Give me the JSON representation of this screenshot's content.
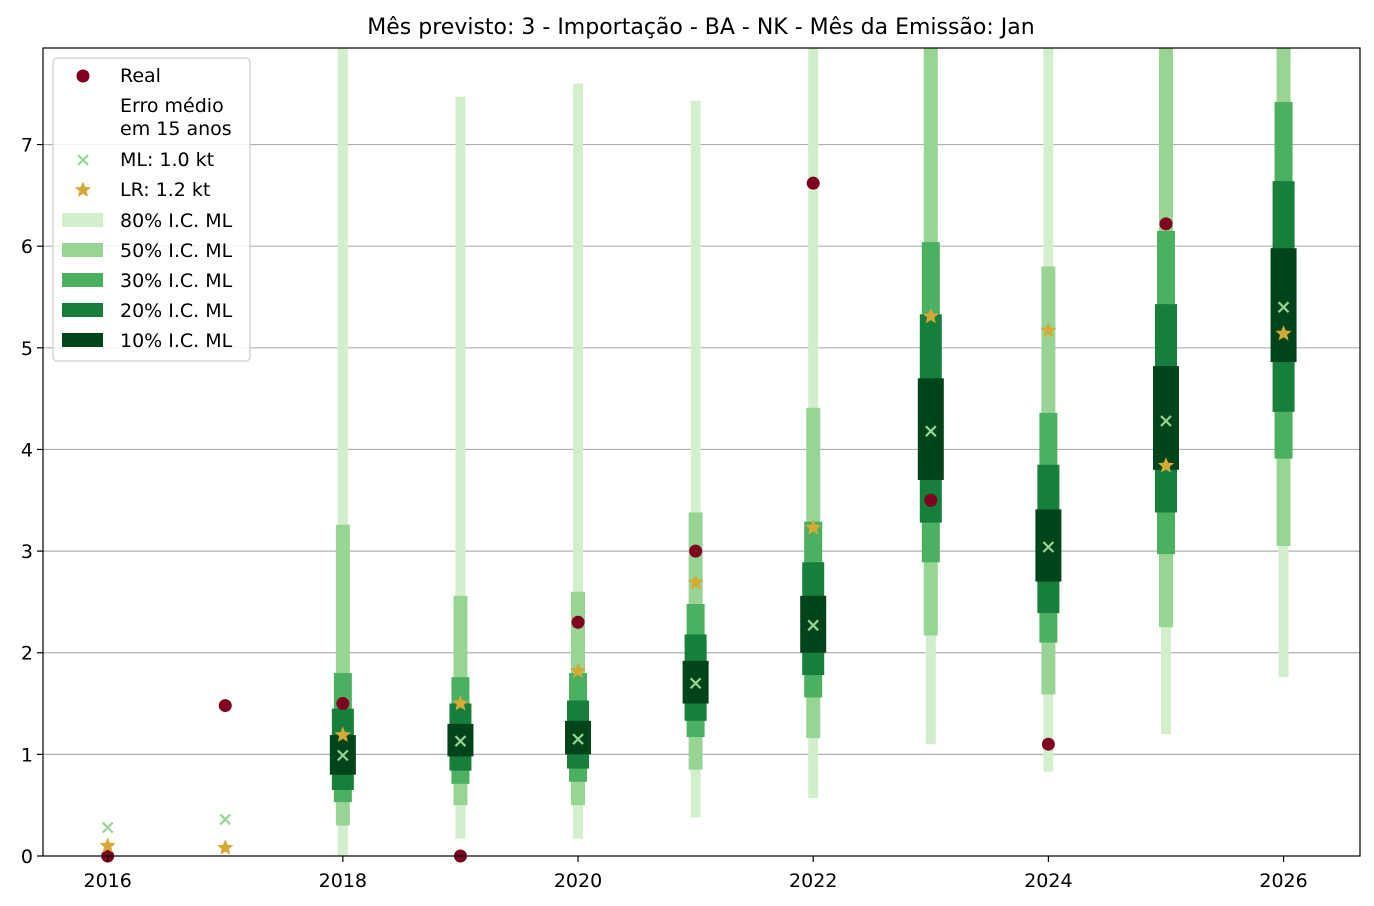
{
  "chart_data": {
    "type": "interval",
    "title": "Mês previsto: 3 - Importação - BA - NK - Mês da Emissão: Jan",
    "xlabel": "",
    "ylabel": "",
    "xlim": [
      2015.45,
      2026.65
    ],
    "ylim": [
      0,
      7.95
    ],
    "x_ticks": [
      2016,
      2018,
      2020,
      2022,
      2024,
      2026
    ],
    "y_ticks": [
      0,
      1,
      2,
      3,
      4,
      5,
      6,
      7
    ],
    "grid": "horizontal",
    "legend_position": "top-left",
    "legend": {
      "real": "Real",
      "erro": "Erro médio\nem 15 anos",
      "ml": "ML: 1.0 kt",
      "lr": "LR: 1.2 kt",
      "ci80": "80% I.C. ML",
      "ci50": "50% I.C. ML",
      "ci30": "30% I.C. ML",
      "ci20": "20% I.C. ML",
      "ci10": "10% I.C. ML"
    },
    "colors": {
      "real": "#7f0020",
      "ml": "#98d594",
      "lr": "#d4a935",
      "ci80": "#d3eecd",
      "ci50": "#98d594",
      "ci30": "#4bb062",
      "ci20": "#157f3b",
      "ci10": "#00441b"
    },
    "years": [
      2016,
      2017,
      2018,
      2019,
      2020,
      2021,
      2022,
      2023,
      2024,
      2025,
      2026
    ],
    "real": [
      0.0,
      1.48,
      1.5,
      0.0,
      2.3,
      3.0,
      6.62,
      3.5,
      1.1,
      6.22,
      null
    ],
    "ml": [
      0.28,
      0.36,
      0.99,
      1.13,
      1.15,
      1.7,
      2.27,
      4.18,
      3.04,
      4.28,
      5.4
    ],
    "lr": [
      0.1,
      0.08,
      1.19,
      1.5,
      1.82,
      2.69,
      3.23,
      5.31,
      5.17,
      3.84,
      5.14
    ],
    "intervals": [
      null,
      null,
      {
        "ci80": [
          0.0,
          7.95
        ],
        "ci50": [
          0.3,
          3.26
        ],
        "ci30": [
          0.53,
          1.8
        ],
        "ci20": [
          0.65,
          1.45
        ],
        "ci10": [
          0.8,
          1.19
        ]
      },
      {
        "ci80": [
          0.17,
          7.47
        ],
        "ci50": [
          0.5,
          2.56
        ],
        "ci30": [
          0.71,
          1.76
        ],
        "ci20": [
          0.84,
          1.5
        ],
        "ci10": [
          0.98,
          1.3
        ]
      },
      {
        "ci80": [
          0.17,
          7.6
        ],
        "ci50": [
          0.5,
          2.6
        ],
        "ci30": [
          0.73,
          1.8
        ],
        "ci20": [
          0.86,
          1.53
        ],
        "ci10": [
          1.0,
          1.33
        ]
      },
      {
        "ci80": [
          0.38,
          7.43
        ],
        "ci50": [
          0.85,
          3.38
        ],
        "ci30": [
          1.17,
          2.48
        ],
        "ci20": [
          1.33,
          2.18
        ],
        "ci10": [
          1.5,
          1.92
        ]
      },
      {
        "ci80": [
          0.57,
          7.95
        ],
        "ci50": [
          1.16,
          4.41
        ],
        "ci30": [
          1.56,
          3.29
        ],
        "ci20": [
          1.78,
          2.89
        ],
        "ci10": [
          2.0,
          2.56
        ]
      },
      {
        "ci80": [
          1.1,
          7.95
        ],
        "ci50": [
          2.17,
          7.95
        ],
        "ci30": [
          2.89,
          6.04
        ],
        "ci20": [
          3.28,
          5.33
        ],
        "ci10": [
          3.7,
          4.7
        ]
      },
      {
        "ci80": [
          0.83,
          7.95
        ],
        "ci50": [
          1.59,
          5.8
        ],
        "ci30": [
          2.1,
          4.36
        ],
        "ci20": [
          2.39,
          3.85
        ],
        "ci10": [
          2.7,
          3.41
        ]
      },
      {
        "ci80": [
          1.2,
          7.95
        ],
        "ci50": [
          2.25,
          7.95
        ],
        "ci30": [
          2.97,
          6.15
        ],
        "ci20": [
          3.38,
          5.43
        ],
        "ci10": [
          3.8,
          4.82
        ]
      },
      {
        "ci80": [
          1.76,
          7.95
        ],
        "ci50": [
          3.05,
          7.95
        ],
        "ci30": [
          3.91,
          7.42
        ],
        "ci20": [
          4.37,
          6.64
        ],
        "ci10": [
          4.86,
          5.98
        ]
      }
    ]
  }
}
